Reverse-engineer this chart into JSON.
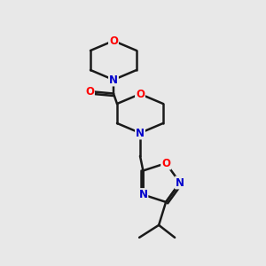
{
  "bg_color": "#e8e8e8",
  "bond_color": "#1a1a1a",
  "atom_colors": {
    "O": "#ff0000",
    "N": "#0000cc",
    "C": "#1a1a1a"
  },
  "figsize": [
    3.0,
    3.0
  ],
  "dpi": 100
}
